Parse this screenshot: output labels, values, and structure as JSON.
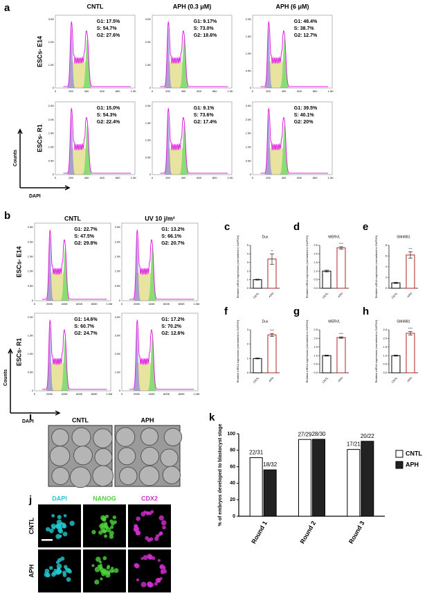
{
  "panels": {
    "a": {
      "label": "a",
      "columns": [
        "CNTL",
        "APH (0.3 μM)",
        "APH (6 μM)"
      ],
      "rows": [
        "ESCs- E14",
        "ESCs- R1"
      ],
      "y_axis_label": "Counts",
      "x_axis_label": "DAPI",
      "xticks": [
        "0",
        "200",
        "400",
        "600",
        "800",
        "1.0K"
      ],
      "plots": [
        [
          {
            "stats": [
              "G1: 17.5%",
              "S: 54.7%",
              "G2: 27.6%"
            ],
            "yticks": [
              "0",
              "1.0K",
              "2.0K",
              "3.0K"
            ]
          },
          {
            "stats": [
              "G1: 9.17%",
              "S: 73.0%",
              "G2: 18.6%"
            ],
            "yticks": [
              "0",
              "1.0K",
              "2.0K",
              "3.0K"
            ]
          },
          {
            "stats": [
              "G1: 48.4%",
              "S: 38.7%",
              "G2: 12.7%"
            ],
            "yticks": [
              "0",
              "0.5K",
              "1.0K",
              "1.5K",
              "2.0K"
            ]
          }
        ],
        [
          {
            "stats": [
              "G1: 15.0%",
              "S: 54.3%",
              "G2: 22.4%"
            ],
            "yticks": [
              "0",
              "0.5K",
              "1.0K",
              "1.5K",
              "2.0K",
              "2.5K"
            ]
          },
          {
            "stats": [
              "G1: 9.1%",
              "S: 73.6%",
              "G2: 17.4%"
            ],
            "yticks": [
              "0",
              "0.5K",
              "1.0K",
              "1.5K",
              "2.0K"
            ]
          },
          {
            "stats": [
              "G1: 39.5%",
              "S: 40.1%",
              "G2: 20%"
            ],
            "yticks": [
              "0",
              "0.5K",
              "1.0K",
              "1.5K",
              "2.0K",
              "2.5K"
            ]
          }
        ]
      ]
    },
    "b": {
      "label": "b",
      "columns": [
        "CNTL",
        "UV 10 j/m²"
      ],
      "rows": [
        "ESCs- E14",
        "ESCs- R1"
      ],
      "y_axis_label": "Counts",
      "x_axis_label": "DAPI",
      "xticks": [
        "0",
        "200K",
        "400K",
        "600K",
        "800K",
        "1.0M"
      ],
      "plots": [
        [
          {
            "stats": [
              "G1: 22.7%",
              "S: 47.5%",
              "G2: 29.8%"
            ],
            "yticks": [
              "0",
              "0.5K",
              "1.0K",
              "1.5K",
              "2.0K",
              "2.5K"
            ]
          },
          {
            "stats": [
              "G1: 13.2%",
              "S: 66.1%",
              "G2: 20.7%"
            ],
            "yticks": [
              "0",
              "0.5K",
              "1.0K",
              "1.5K",
              "2.0K",
              "2.5K"
            ]
          }
        ],
        [
          {
            "stats": [
              "G1: 14.6%",
              "S: 60.7%",
              "G2: 24.7%"
            ],
            "yticks": [
              "0",
              "0.5K",
              "1.0K",
              "1.5K",
              "2.0K"
            ]
          },
          {
            "stats": [
              "G1: 17.2%",
              "S: 70.2%",
              "G2: 12.6%"
            ],
            "yticks": [
              "0",
              "1.0K",
              "2.0K",
              "3.0K",
              "4.0K"
            ]
          }
        ]
      ]
    },
    "i": {
      "label": "i",
      "columns": [
        "CNTL",
        "APH"
      ]
    },
    "j": {
      "label": "j",
      "columns": [
        "DAPI",
        "NANOG",
        "CDX2"
      ],
      "rows": [
        "CNTL",
        "APH"
      ]
    }
  },
  "chart_data": [
    {
      "type": "bar",
      "panel_label": "c",
      "title": "Dux",
      "y_label": "Relative mRNA expression (normalized to GAPDH)",
      "categories": [
        "CNTL",
        "APH"
      ],
      "values": [
        1,
        3.4
      ],
      "errors": [
        0.05,
        0.6
      ],
      "significance": "**",
      "colors": [
        "#000000",
        "#b22222"
      ],
      "ylim": [
        0,
        5
      ],
      "yticks": [
        0,
        1,
        2,
        3,
        4,
        5
      ]
    },
    {
      "type": "bar",
      "panel_label": "d",
      "title": "MERVL",
      "y_label": "Relative mRNA expression (normalized to GAPDH)",
      "categories": [
        "CNTL",
        "APH"
      ],
      "values": [
        1,
        2.35
      ],
      "errors": [
        0.05,
        0.07
      ],
      "significance": "****",
      "colors": [
        "#000000",
        "#b22222"
      ],
      "ylim": [
        0,
        2.5
      ],
      "yticks": [
        {
          "value": 0,
          "label": "0.0"
        },
        0.5,
        {
          "value": 1,
          "label": "1.0"
        },
        1.5,
        {
          "value": 2,
          "label": "2.0"
        },
        2.5
      ]
    },
    {
      "type": "bar",
      "panel_label": "e",
      "title": "GM4981",
      "y_label": "Relative mRNA expression (normalized to GAPDH)",
      "categories": [
        "CNTL",
        "APH"
      ],
      "values": [
        1,
        6.2
      ],
      "errors": [
        0.1,
        0.6
      ],
      "significance": "***",
      "colors": [
        "#000000",
        "#b22222"
      ],
      "ylim": [
        0,
        8
      ],
      "yticks": [
        0,
        2,
        4,
        6,
        8
      ]
    },
    {
      "type": "bar",
      "panel_label": "f",
      "title": "Dux",
      "y_label": "Relative mRNA expression (normalized to GAPDH)",
      "categories": [
        "CNTL",
        "APH"
      ],
      "values": [
        1,
        2.65
      ],
      "errors": [
        0.03,
        0.1
      ],
      "significance": "****",
      "colors": [
        "#000000",
        "#b22222"
      ],
      "ylim": [
        0,
        3
      ],
      "yticks": [
        0,
        1,
        2,
        3
      ]
    },
    {
      "type": "bar",
      "panel_label": "g",
      "title": "MERVL",
      "y_label": "Relative mRNA expression (normalized to GAPDH)",
      "categories": [
        "CNTL",
        "APH"
      ],
      "values": [
        1,
        2.05
      ],
      "errors": [
        0.03,
        0.04
      ],
      "significance": "****",
      "colors": [
        "#000000",
        "#b22222"
      ],
      "ylim": [
        0,
        2.5
      ],
      "yticks": [
        {
          "value": 0,
          "label": "0.0"
        },
        0.5,
        {
          "value": 1,
          "label": "1.0"
        },
        1.5,
        {
          "value": 2,
          "label": "2.0"
        },
        2.5
      ]
    },
    {
      "type": "bar",
      "panel_label": "h",
      "title": "GM4981",
      "y_label": "Relative mRNA expression (normalized to GAPDH)",
      "categories": [
        "CNTL",
        "APH"
      ],
      "values": [
        1,
        2.3
      ],
      "errors": [
        0.03,
        0.1
      ],
      "significance": "****",
      "colors": [
        "#000000",
        "#b22222"
      ],
      "ylim": [
        0,
        2.5
      ],
      "yticks": [
        {
          "value": 0,
          "label": "0.0"
        },
        0.5,
        {
          "value": 1,
          "label": "1.0"
        },
        1.5,
        {
          "value": 2,
          "label": "2.0"
        },
        2.5
      ]
    },
    {
      "type": "grouped-bar",
      "panel_label": "k",
      "y_label": "% of embryos developed to blastocyst stage",
      "categories": [
        "Round 1",
        "Round 2",
        "Round 3"
      ],
      "series": [
        {
          "name": "CNTL",
          "color": "#ffffff",
          "values": [
            71,
            93.1,
            81
          ],
          "value_labels": [
            "22/31",
            "27/29",
            "17/21"
          ]
        },
        {
          "name": "APH",
          "color": "#222222",
          "values": [
            56.25,
            93.3,
            90.9
          ],
          "value_labels": [
            "18/32",
            "28/30",
            "20/22"
          ]
        }
      ],
      "ylim": [
        0,
        100
      ],
      "yticks": [
        0,
        20,
        40,
        60,
        80,
        100
      ]
    }
  ]
}
